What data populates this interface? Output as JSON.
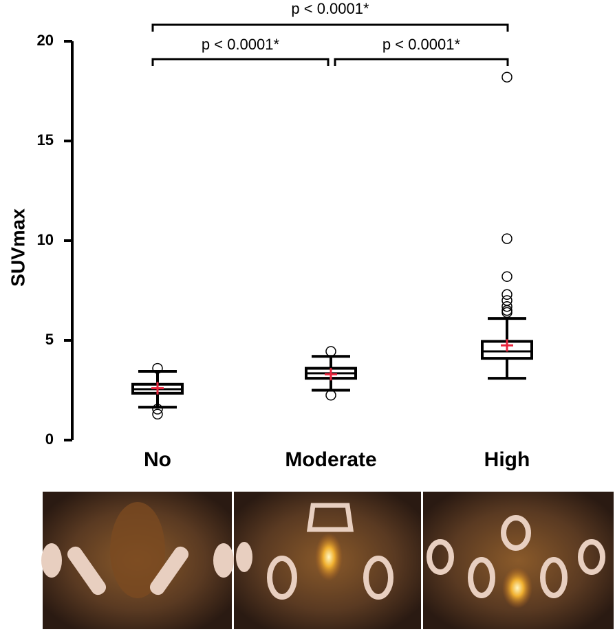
{
  "chart_data": {
    "type": "box",
    "y_label": "SUVmax",
    "categories": [
      "No",
      "Moderate",
      "High"
    ],
    "ylim": [
      0,
      20
    ],
    "yticks": [
      0,
      5,
      10,
      15,
      20
    ],
    "annotations": [
      "p < 0.0001*",
      "p < 0.0001*",
      "p < 0.0001*"
    ],
    "mean_color": "#e8243c",
    "boxes": [
      {
        "whisker_low": 1.65,
        "q1": 2.35,
        "median": 2.55,
        "q3": 2.8,
        "whisker_high": 3.45,
        "mean": 2.6,
        "outliers": [
          3.6,
          1.55,
          1.3
        ]
      },
      {
        "whisker_low": 2.5,
        "q1": 3.1,
        "median": 3.35,
        "q3": 3.6,
        "whisker_high": 4.2,
        "mean": 3.3,
        "outliers": [
          4.45,
          2.25
        ]
      },
      {
        "whisker_low": 3.1,
        "q1": 4.1,
        "median": 4.45,
        "q3": 4.95,
        "whisker_high": 6.1,
        "mean": 4.75,
        "outliers": [
          18.2,
          10.1,
          8.2,
          7.3,
          7.0,
          6.7,
          6.5,
          6.4
        ]
      }
    ]
  }
}
